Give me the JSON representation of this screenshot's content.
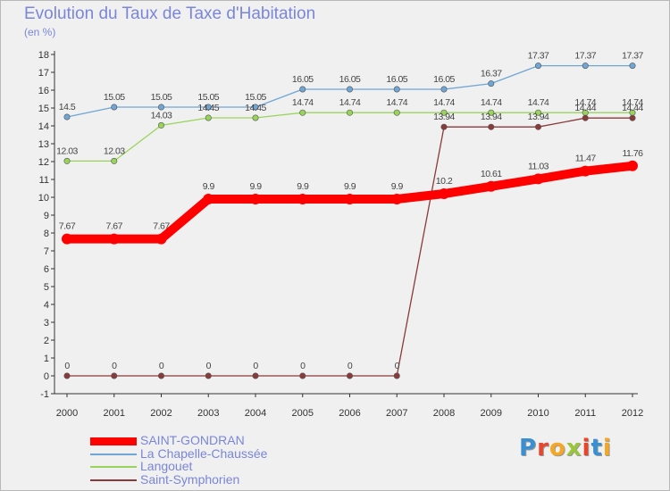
{
  "title": "Evolution du Taux de Taxe d'Habitation",
  "subtitle": "(en %)",
  "brand": [
    "P",
    "r",
    "o",
    "x",
    "i",
    "t",
    "i"
  ],
  "brand_colors": [
    "#3a8fd0",
    "#e8462c",
    "#f5a623",
    "#9bc53d",
    "#e8462c",
    "#3a8fd0",
    "#f5a623"
  ],
  "chart_data": {
    "type": "line",
    "title": "Evolution du Taux de Taxe d'Habitation",
    "subtitle": "(en %)",
    "xlabel": "",
    "ylabel": "",
    "x": [
      "2000",
      "2001",
      "2002",
      "2003",
      "2004",
      "2005",
      "2006",
      "2007",
      "2008",
      "2009",
      "2010",
      "2011",
      "2012"
    ],
    "ylim": [
      -1,
      18
    ],
    "yticks": [
      "-1",
      "0",
      "1",
      "2",
      "3",
      "4",
      "5",
      "6",
      "7",
      "8",
      "9",
      "10",
      "11",
      "12",
      "13",
      "14",
      "15",
      "16",
      "17",
      "18"
    ],
    "grid": false,
    "legend_position": "bottom-left",
    "series": [
      {
        "name": "La Chapelle-Chaussée",
        "color": "#6fa6d6",
        "values": [
          14.5,
          15.05,
          15.05,
          15.05,
          15.05,
          16.05,
          16.05,
          16.05,
          16.05,
          16.37,
          17.37,
          17.37,
          17.37
        ],
        "labels": [
          "14.5",
          "15.05",
          "15.05",
          "15.05",
          "15.05",
          "16.05",
          "16.05",
          "16.05",
          "16.05",
          "16.37",
          "17.37",
          "17.37",
          "17.37"
        ],
        "thick": false
      },
      {
        "name": "Langouet",
        "color": "#99d45a",
        "values": [
          12.03,
          12.03,
          14.03,
          14.45,
          14.45,
          14.74,
          14.74,
          14.74,
          14.74,
          14.74,
          14.74,
          14.74,
          14.74
        ],
        "labels": [
          "12.03",
          "12.03",
          "14.03",
          "14.45",
          "14.45",
          "14.74",
          "14.74",
          "14.74",
          "14.74",
          "14.74",
          "14.74",
          "14.74",
          "14.74"
        ],
        "thick": false
      },
      {
        "name": "Saint-Symphorien",
        "color": "#8a3a3a",
        "values": [
          0,
          0,
          0,
          0,
          0,
          0,
          0,
          0,
          13.94,
          13.94,
          13.94,
          14.44,
          14.44
        ],
        "labels": [
          "0",
          "0",
          "0",
          "0",
          "0",
          "0",
          "0",
          "0",
          "13.94",
          "13.94",
          "13.94",
          "14.44",
          "14.44"
        ],
        "thick": false
      },
      {
        "name": "SAINT-GONDRAN",
        "color": "#ff0000",
        "values": [
          7.67,
          7.67,
          7.67,
          9.9,
          9.9,
          9.9,
          9.9,
          9.9,
          10.2,
          10.61,
          11.03,
          11.47,
          11.76
        ],
        "labels": [
          "7.67",
          "7.67",
          "7.67",
          "9.9",
          "9.9",
          "9.9",
          "9.9",
          "9.9",
          "10.2",
          "10.61",
          "11.03",
          "11.47",
          "11.76"
        ],
        "thick": true
      }
    ],
    "legend": [
      "SAINT-GONDRAN",
      "La Chapelle-Chaussée",
      "Langouet",
      "Saint-Symphorien"
    ]
  }
}
